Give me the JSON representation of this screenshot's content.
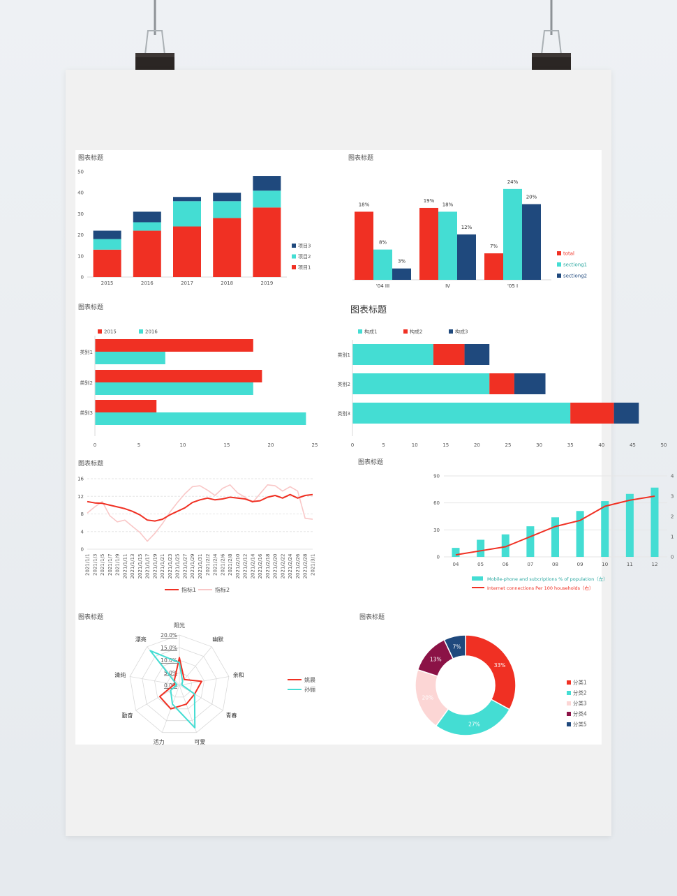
{
  "panels": {
    "p1": {
      "title": "图表标题"
    },
    "p2": {
      "title": "图表标题"
    },
    "p3": {
      "title": "图表标题"
    },
    "p4": {
      "title": "图表标题"
    },
    "p5": {
      "title": "图表标题"
    },
    "p6": {
      "title": "图表标题"
    },
    "p7": {
      "title": "图表标题"
    },
    "p8": {
      "title": "图表标题"
    }
  },
  "colors": {
    "red": "#f03023",
    "teal": "#44ddd3",
    "navy": "#1f497d",
    "pink": "#f9c7c7",
    "maroon": "#8b1246",
    "lightpink": "#fcd6d5"
  },
  "chart_data": [
    {
      "type": "bar",
      "stacked": true,
      "title": "图表标题",
      "categories": [
        "2015",
        "2016",
        "2017",
        "2018",
        "2019"
      ],
      "series": [
        {
          "name": "项目1",
          "values": [
            13,
            22,
            24,
            28,
            33
          ]
        },
        {
          "name": "项目2",
          "values": [
            5,
            4,
            12,
            8,
            8
          ]
        },
        {
          "name": "项目3",
          "values": [
            4,
            5,
            2,
            4,
            7
          ]
        }
      ],
      "yticks": [
        "0",
        "10",
        "20",
        "30",
        "40",
        "50"
      ],
      "ylim": [
        0,
        50
      ],
      "legend": "right"
    },
    {
      "type": "bar",
      "title": "图表标题",
      "categories": [
        "'04 III",
        "IV",
        "'05 I"
      ],
      "series": [
        {
          "name": "total",
          "values": [
            18,
            19,
            7
          ]
        },
        {
          "name": "sectiong1",
          "values": [
            8,
            18,
            24
          ]
        },
        {
          "name": "sectiong2",
          "values": [
            3,
            12,
            20
          ]
        }
      ],
      "data_labels": [
        [
          "18%",
          "8%",
          "3%"
        ],
        [
          "19%",
          "18%",
          "12%"
        ],
        [
          "7%",
          "24%",
          "20%"
        ]
      ],
      "ylim": [
        0,
        26
      ],
      "legend": "right"
    },
    {
      "type": "bar",
      "orientation": "horizontal",
      "title": "图表标题",
      "categories": [
        "类别1",
        "类别2",
        "类别3"
      ],
      "series": [
        {
          "name": "2015",
          "values": [
            18,
            19,
            7
          ]
        },
        {
          "name": "2016",
          "values": [
            8,
            18,
            24
          ]
        }
      ],
      "xticks": [
        "0",
        "5",
        "10",
        "15",
        "20",
        "25"
      ],
      "xlim": [
        0,
        25
      ],
      "legend": "top"
    },
    {
      "type": "bar",
      "orientation": "horizontal",
      "stacked": true,
      "title": "图表标题",
      "categories": [
        "类别1",
        "类别2",
        "类别3"
      ],
      "series": [
        {
          "name": "构成1",
          "values": [
            13,
            22,
            35
          ]
        },
        {
          "name": "构成2",
          "values": [
            5,
            4,
            7
          ]
        },
        {
          "name": "构成3",
          "values": [
            4,
            5,
            4
          ]
        }
      ],
      "xticks": [
        "0",
        "5",
        "10",
        "15",
        "20",
        "25",
        "30",
        "35",
        "40",
        "45",
        "50"
      ],
      "xlim": [
        0,
        50
      ],
      "legend": "top"
    },
    {
      "type": "line",
      "title": "图表标题",
      "x": [
        "2021/1/1",
        "2021/1/3",
        "2021/1/5",
        "2021/1/7",
        "2021/1/9",
        "2021/1/11",
        "2021/1/13",
        "2021/1/15",
        "2021/1/17",
        "2021/1/19",
        "2021/1/21",
        "2021/1/23",
        "2021/1/25",
        "2021/1/27",
        "2021/1/29",
        "2021/1/31",
        "2021/2/2",
        "2021/2/4",
        "2021/2/6",
        "2021/2/8",
        "2021/2/10",
        "2021/2/12",
        "2021/2/14",
        "2021/2/16",
        "2021/2/18",
        "2021/2/20",
        "2021/2/22",
        "2021/2/24",
        "2021/2/26",
        "2021/2/28",
        "2021/3/1"
      ],
      "series": [
        {
          "name": "指标1",
          "values": [
            10.8,
            10.5,
            10.4,
            10.0,
            9.6,
            9.2,
            8.6,
            7.8,
            6.6,
            6.4,
            6.8,
            7.8,
            8.6,
            9.4,
            10.6,
            11.2,
            11.6,
            11.2,
            11.4,
            11.8,
            11.6,
            11.4,
            10.8,
            11.0,
            11.8,
            12.2,
            11.6,
            12.4,
            11.6,
            12.2,
            12.4
          ]
        },
        {
          "name": "指标2",
          "values": [
            8.2,
            9.6,
            10.8,
            7.6,
            6.2,
            6.6,
            5.2,
            3.8,
            1.8,
            3.6,
            5.8,
            8.4,
            10.6,
            12.6,
            14.2,
            14.4,
            13.4,
            12.2,
            13.8,
            14.6,
            12.8,
            11.8,
            10.6,
            12.6,
            14.6,
            14.4,
            13.2,
            14.2,
            13.2,
            7.0,
            6.8
          ]
        }
      ],
      "yticks": [
        "0",
        "4",
        "8",
        "12",
        "16"
      ],
      "ylim": [
        0,
        16
      ],
      "grid": true,
      "legend": "bottom"
    },
    {
      "type": "bar",
      "combo": "bar+line",
      "title": "图表标题",
      "categories": [
        "04",
        "05",
        "06",
        "07",
        "08",
        "09",
        "10",
        "11",
        "12"
      ],
      "series": [
        {
          "name": "Mobile-phone and subcriptions % of population（左）",
          "type": "bar",
          "axis": "left",
          "values": [
            10,
            19,
            25,
            34,
            44,
            51,
            62,
            70,
            77
          ]
        },
        {
          "name": "Internet connections Per 100 households（右）",
          "type": "line",
          "axis": "right",
          "values": [
            0.1,
            0.3,
            0.5,
            1.0,
            1.5,
            1.8,
            2.5,
            2.8,
            3.0
          ]
        }
      ],
      "yticks_left": [
        "0",
        "30",
        "60",
        "90"
      ],
      "yticks_right": [
        "0",
        "1",
        "2",
        "3",
        "4"
      ],
      "ylim_left": [
        0,
        90
      ],
      "ylim_right": [
        0,
        4
      ],
      "grid": true,
      "legend": "bottom"
    },
    {
      "type": "radar",
      "title": "图表标题",
      "axes": [
        "阳光",
        "幽默",
        "亲和",
        "青春",
        "可爱",
        "活力",
        "勤奋",
        "清纯",
        "漂亮"
      ],
      "series": [
        {
          "name": "姚晨",
          "values": [
            0.11,
            0.03,
            0.09,
            0.07,
            0.08,
            0.1,
            0.09,
            0.02,
            0.03
          ]
        },
        {
          "name": "孙俪",
          "values": [
            0.09,
            0.02,
            0.01,
            0.07,
            0.18,
            0.08,
            0.04,
            0.01,
            0.18
          ]
        }
      ],
      "rticks": [
        "0.0%",
        "5.0%",
        "10.0%",
        "15.0%",
        "20.0%"
      ],
      "rlim": [
        0,
        0.2
      ],
      "legend": "right"
    },
    {
      "type": "pie",
      "donut": true,
      "title": "图表标题",
      "categories": [
        "分类1",
        "分类2",
        "分类3",
        "分类4",
        "分类5"
      ],
      "values": [
        33,
        27,
        20,
        13,
        7
      ],
      "data_labels": [
        "33%",
        "27%",
        "20%",
        "13%",
        "7%"
      ],
      "legend": "right"
    }
  ]
}
